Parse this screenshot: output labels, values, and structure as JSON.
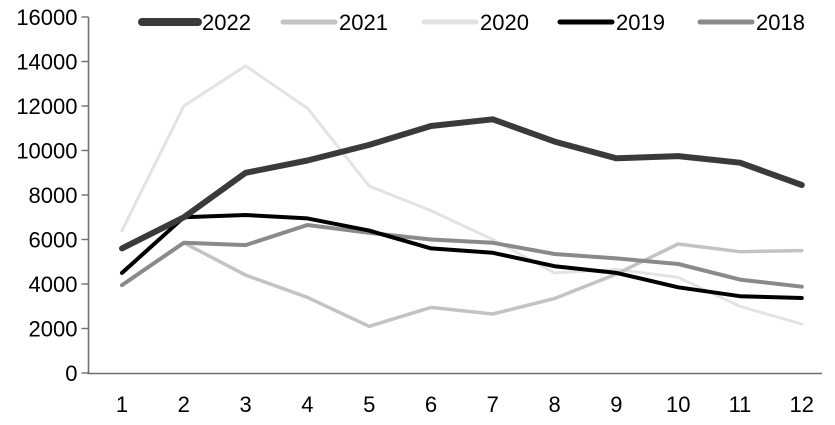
{
  "chart_data": {
    "type": "line",
    "title": "",
    "xlabel": "",
    "ylabel": "",
    "x_categories": [
      "1",
      "2",
      "3",
      "4",
      "5",
      "6",
      "7",
      "8",
      "9",
      "10",
      "11",
      "12"
    ],
    "y_ticks": [
      0,
      2000,
      4000,
      6000,
      8000,
      10000,
      12000,
      14000,
      16000
    ],
    "ylim": [
      0,
      16000
    ],
    "grid": false,
    "legend_position": "top",
    "background_color": "#ffffff",
    "axis_color": "#6e6e6e",
    "text_color": "#000000",
    "series": [
      {
        "name": "2022",
        "color": "#3a3a3a",
        "line_width": 6,
        "values": [
          5600,
          7000,
          9000,
          9550,
          10250,
          11100,
          11400,
          10400,
          9650,
          9750,
          9450,
          8450
        ]
      },
      {
        "name": "2021",
        "color": "#c3c3c3",
        "line_width": 3.5,
        "values": [
          null,
          5850,
          4400,
          3400,
          2100,
          2950,
          2650,
          3350,
          4450,
          5800,
          5450,
          5500
        ]
      },
      {
        "name": "2020",
        "color": "#e3e3e3",
        "line_width": 3,
        "values": [
          6400,
          12000,
          13800,
          11900,
          8400,
          7300,
          6000,
          4500,
          4650,
          4300,
          3000,
          2200
        ]
      },
      {
        "name": "2019",
        "color": "#000000",
        "line_width": 4,
        "values": [
          4500,
          7000,
          7100,
          6950,
          6400,
          5600,
          5400,
          4800,
          4500,
          3850,
          3450,
          3370
        ]
      },
      {
        "name": "2018",
        "color": "#8a8a8a",
        "line_width": 4,
        "values": [
          3950,
          5850,
          5750,
          6650,
          6300,
          6000,
          5850,
          5350,
          5150,
          4900,
          4200,
          3880
        ]
      }
    ],
    "draw_order": [
      "2020",
      "2021",
      "2018",
      "2019",
      "2022"
    ]
  }
}
